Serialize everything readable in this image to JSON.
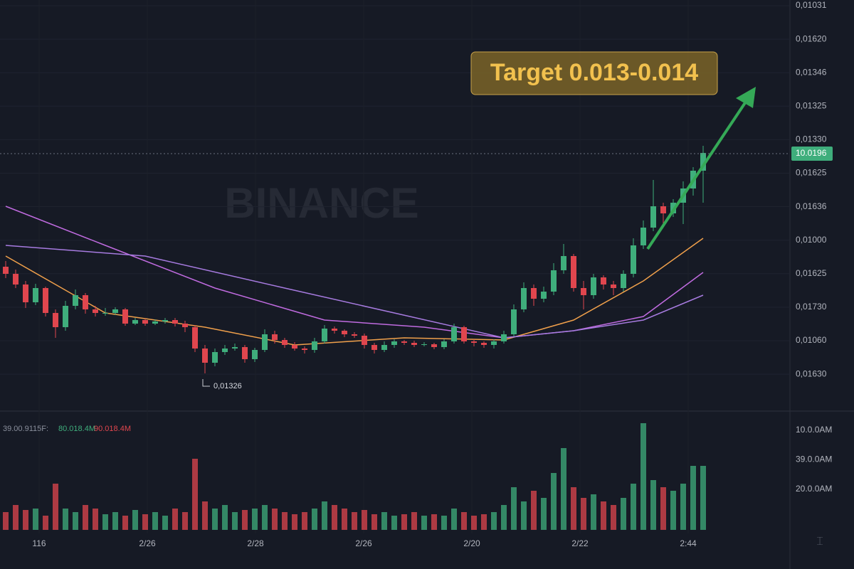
{
  "chart_data": {
    "type": "candlestick",
    "watermark": "BINANCE",
    "up_color": "#3fae7c",
    "down_color": "#e0464e",
    "grid": true,
    "price_labels": [
      "0,01031",
      "0,01620",
      "0,01346",
      "0,01325",
      "0,01330",
      "0,01625",
      "0,01636",
      "0,01000",
      "0,01625",
      "0,01730",
      "0,01060",
      "0,01630"
    ],
    "time_labels": [
      "116",
      "2/26",
      "2/28",
      "2/26",
      "2/20",
      "2/22",
      "2:44"
    ],
    "ylim": [
      0,
      575
    ],
    "open": [
      200,
      190,
      175,
      150,
      170,
      135,
      115,
      145,
      160,
      140,
      135,
      135,
      140,
      120,
      125,
      120,
      123,
      125,
      120,
      115,
      85,
      65,
      80,
      85,
      87,
      70,
      83,
      105,
      97,
      90,
      85,
      83,
      95,
      113,
      110,
      105,
      103,
      90,
      83,
      90,
      95,
      93,
      90,
      91,
      87,
      95,
      115,
      95,
      93,
      90,
      95,
      105,
      140,
      170,
      155,
      165,
      195,
      215,
      170,
      160,
      185,
      175,
      170,
      190,
      230,
      255,
      285,
      275,
      290,
      310,
      335
    ],
    "high": [
      208,
      196,
      180,
      176,
      172,
      140,
      152,
      168,
      163,
      145,
      142,
      143,
      142,
      128,
      127,
      126,
      128,
      128,
      124,
      118,
      90,
      85,
      90,
      92,
      90,
      86,
      112,
      110,
      100,
      94,
      88,
      100,
      118,
      116,
      112,
      108,
      106,
      93,
      95,
      98,
      97,
      96,
      94,
      93,
      98,
      120,
      117,
      98,
      95,
      98,
      110,
      147,
      178,
      175,
      172,
      205,
      232,
      218,
      180,
      190,
      188,
      180,
      195,
      240,
      265,
      322,
      290,
      295,
      320,
      340,
      370
    ],
    "low": [
      184,
      170,
      142,
      146,
      130,
      100,
      110,
      140,
      134,
      130,
      131,
      132,
      117,
      118,
      117,
      118,
      120,
      116,
      108,
      80,
      50,
      60,
      76,
      82,
      65,
      66,
      80,
      92,
      86,
      82,
      78,
      79,
      92,
      106,
      101,
      100,
      85,
      78,
      80,
      86,
      90,
      87,
      88,
      84,
      84,
      92,
      92,
      88,
      86,
      85,
      92,
      102,
      136,
      145,
      150,
      160,
      190,
      165,
      140,
      155,
      168,
      160,
      165,
      185,
      225,
      250,
      260,
      270,
      260,
      300,
      290
    ],
    "close": [
      190,
      175,
      150,
      170,
      135,
      115,
      145,
      160,
      140,
      135,
      135,
      140,
      120,
      125,
      120,
      123,
      125,
      120,
      115,
      85,
      65,
      80,
      85,
      87,
      70,
      83,
      105,
      97,
      90,
      85,
      83,
      95,
      113,
      110,
      105,
      103,
      90,
      83,
      90,
      95,
      93,
      90,
      91,
      87,
      95,
      115,
      95,
      93,
      90,
      95,
      105,
      140,
      170,
      155,
      165,
      195,
      215,
      170,
      160,
      185,
      175,
      170,
      190,
      230,
      255,
      285,
      275,
      290,
      310,
      335,
      360
    ],
    "moving_averages": [
      {
        "color": "#f0a04b",
        "x": [
          0,
          10,
          20,
          29,
          40,
          50,
          57,
          64,
          70
        ],
        "values": [
          215,
          135,
          115,
          90,
          100,
          97,
          125,
          180,
          240
        ]
      },
      {
        "color": "#c06be0",
        "x": [
          0,
          10,
          21,
          32,
          42,
          50,
          57,
          64,
          70
        ],
        "values": [
          285,
          230,
          170,
          125,
          115,
          100,
          110,
          130,
          192
        ]
      },
      {
        "color": "#a77be0",
        "x": [
          0,
          14,
          28,
          39,
          50,
          57,
          64,
          70
        ],
        "values": [
          230,
          215,
          170,
          135,
          100,
          110,
          125,
          160
        ]
      }
    ],
    "current_price_label": "10.0196",
    "current_price": 359,
    "low_label": "0,01326",
    "annotation": "Target 0.013-0.014",
    "volume": {
      "legend": [
        "39.00.9115F:",
        "80.018.4M",
        "90.018.4M"
      ],
      "labels": [
        "10.0.0AM",
        "39.0.0AM",
        "20.0.0AM"
      ],
      "ylim": [
        0,
        165
      ],
      "values": [
        25,
        35,
        28,
        30,
        20,
        65,
        30,
        25,
        35,
        30,
        22,
        25,
        20,
        28,
        22,
        25,
        20,
        30,
        25,
        100,
        40,
        30,
        35,
        25,
        28,
        30,
        35,
        30,
        25,
        22,
        25,
        30,
        40,
        35,
        30,
        25,
        28,
        22,
        25,
        20,
        22,
        25,
        20,
        22,
        20,
        30,
        25,
        20,
        22,
        25,
        35,
        60,
        40,
        55,
        45,
        80,
        115,
        60,
        45,
        50,
        40,
        35,
        45,
        65,
        150,
        70,
        60,
        55,
        65,
        90,
        90
      ]
    }
  }
}
